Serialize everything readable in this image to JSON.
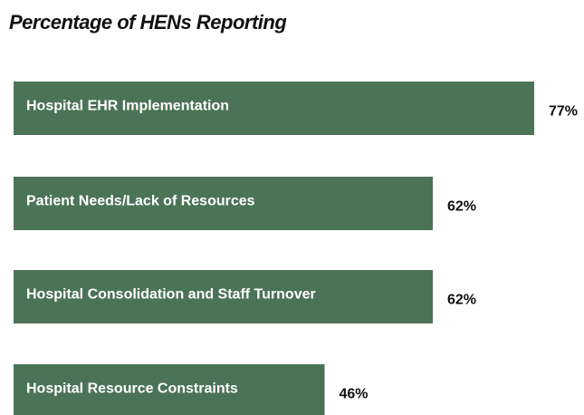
{
  "chart_data": {
    "type": "bar",
    "orientation": "horizontal",
    "title": "Percentage of HENs Reporting",
    "categories": [
      "Hospital EHR Implementation",
      "Patient Needs/Lack of Resources",
      "Hospital Consolidation and Staff Turnover",
      "Hospital Resource Constraints"
    ],
    "values": [
      77,
      62,
      62,
      46
    ],
    "value_labels": [
      "77%",
      "62%",
      "62%",
      "46%"
    ],
    "color": "#4b7356"
  }
}
